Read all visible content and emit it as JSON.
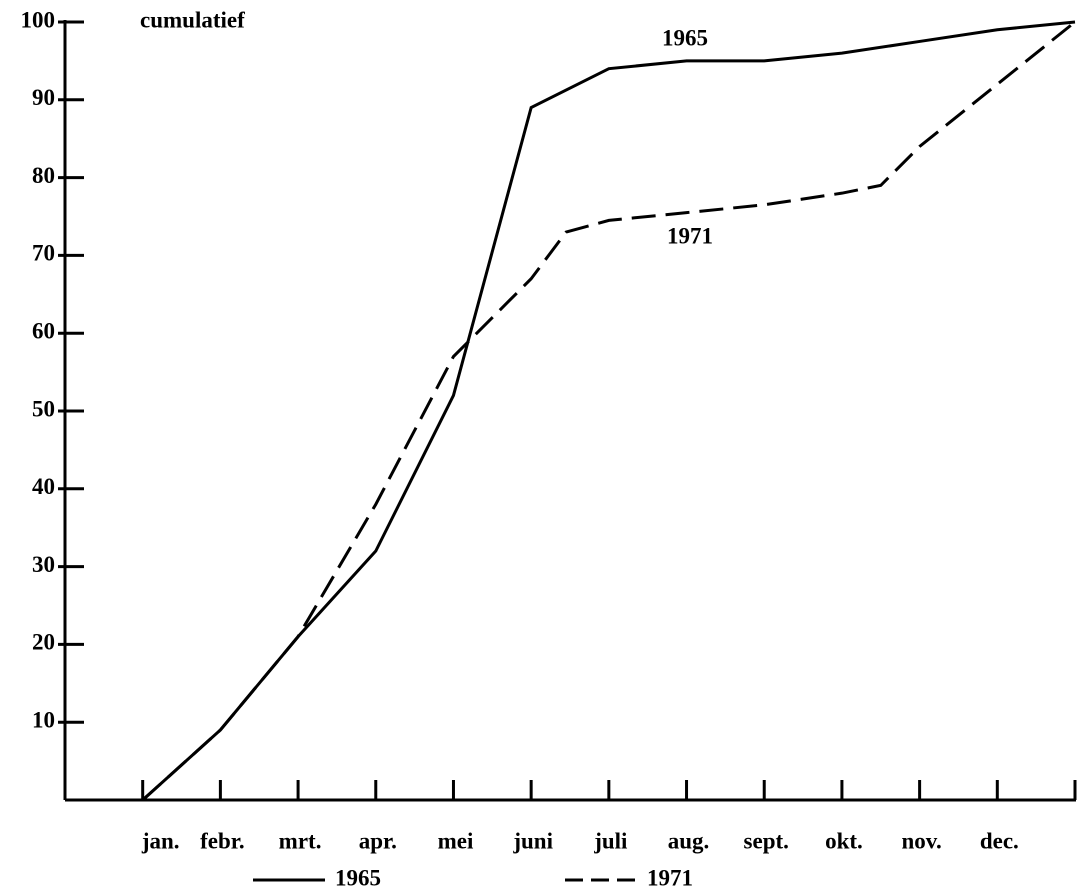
{
  "chart_data": {
    "type": "line",
    "annotations": [
      "cumulatief"
    ],
    "xlim": [
      0,
      13
    ],
    "xticks": [
      {
        "value": 1,
        "label": "jan."
      },
      {
        "value": 2,
        "label": "febr."
      },
      {
        "value": 3,
        "label": "mrt."
      },
      {
        "value": 4,
        "label": "apr."
      },
      {
        "value": 5,
        "label": "mei"
      },
      {
        "value": 6,
        "label": "juni"
      },
      {
        "value": 7,
        "label": "juli"
      },
      {
        "value": 8,
        "label": "aug."
      },
      {
        "value": 9,
        "label": "sept."
      },
      {
        "value": 10,
        "label": "okt."
      },
      {
        "value": 11,
        "label": "nov."
      },
      {
        "value": 12,
        "label": "dec."
      }
    ],
    "ylim": [
      0,
      100
    ],
    "yticks": [
      10,
      20,
      30,
      40,
      50,
      60,
      70,
      80,
      90,
      100
    ],
    "series": [
      {
        "name": "1965",
        "color": "#000000",
        "dashed": false,
        "x": [
          1,
          2,
          3,
          4,
          5,
          6,
          7,
          8,
          9,
          10,
          11,
          12,
          13
        ],
        "values": [
          0,
          9,
          21,
          32,
          52,
          89,
          94,
          95,
          95,
          96,
          97.5,
          99,
          100
        ]
      },
      {
        "name": "1971",
        "color": "#000000",
        "dashed": true,
        "x": [
          1,
          2,
          3,
          4,
          5,
          6,
          6.45,
          7,
          8,
          9,
          10,
          10.5,
          11,
          12,
          13
        ],
        "values": [
          0,
          9,
          21,
          38,
          57,
          67,
          73,
          74.5,
          75.5,
          76.5,
          78,
          79,
          84,
          92,
          100
        ]
      }
    ]
  }
}
